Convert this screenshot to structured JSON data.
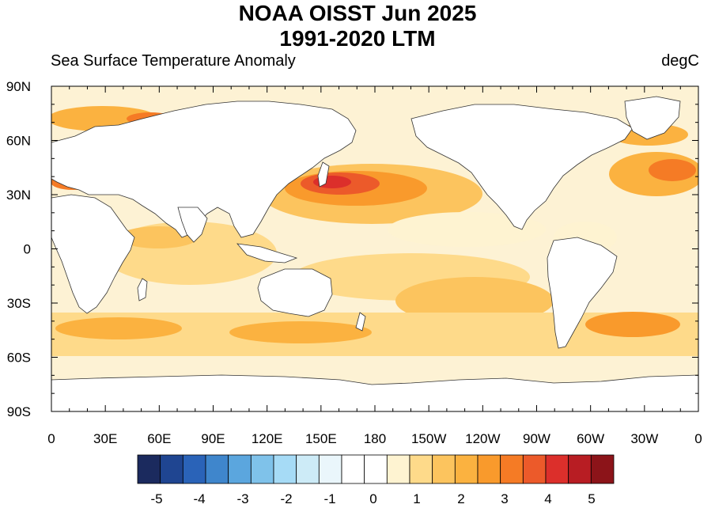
{
  "title_line1": "NOAA OISST Jun 2025",
  "title_line2": "1991-2020 LTM",
  "left_label": "Sea Surface Temperature Anomaly",
  "right_label": "degC",
  "map": {
    "projection": "cylindrical equidistant",
    "lon_range": [
      0,
      360
    ],
    "lat_range": [
      -90,
      90
    ],
    "ocean_base_color": "#fdf2d4",
    "land_color": "#ffffff",
    "lat_tick_labels": [
      "90N",
      "60N",
      "30N",
      "0",
      "30S",
      "60S",
      "90S"
    ],
    "lon_tick_labels": [
      "0",
      "30E",
      "60E",
      "90E",
      "120E",
      "150E",
      "180",
      "150W",
      "120W",
      "90W",
      "60W",
      "30W",
      "0"
    ]
  },
  "colorbar": {
    "labels": [
      "-5",
      "-4",
      "-3",
      "-2",
      "-1",
      "0",
      "1",
      "2",
      "3",
      "4",
      "5"
    ],
    "colors": [
      "#1b2a5e",
      "#1f4591",
      "#2a63b8",
      "#3f86cc",
      "#5ba6de",
      "#7fc2ea",
      "#a6dbf6",
      "#cdebf7",
      "#eaf6fb",
      "#ffffff",
      "#ffffff",
      "#fef3d1",
      "#feda8a",
      "#fcc45e",
      "#fbb240",
      "#f99a2c",
      "#f57b25",
      "#ec5a2a",
      "#dc2f2b",
      "#b81d23",
      "#8c1419"
    ]
  }
}
